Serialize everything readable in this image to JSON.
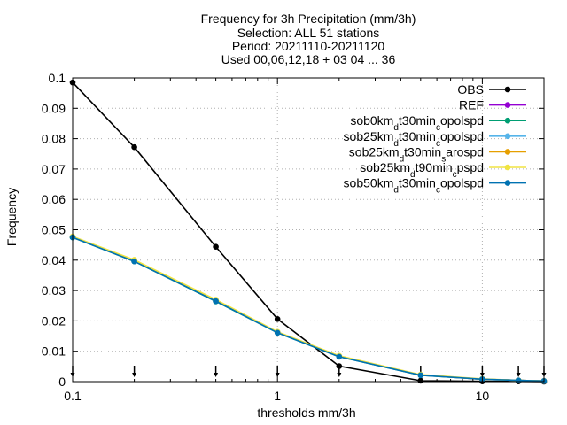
{
  "chart_data": {
    "type": "line",
    "title_lines": [
      "Frequency  for 3h Precipitation (mm/3h)",
      "Selection: ALL      51 stations",
      "Period: 20211110-20211120",
      "Used 00,06,12,18 + 03 04 ... 36"
    ],
    "xlabel": "thresholds mm/3h",
    "ylabel": "Frequency",
    "x_scale": "log",
    "xlim": [
      0.1,
      20
    ],
    "ylim": [
      0,
      0.1
    ],
    "x_ticks": [
      {
        "value": 0.1,
        "label": "0.1"
      },
      {
        "value": 1,
        "label": "1"
      },
      {
        "value": 10,
        "label": "10"
      }
    ],
    "y_ticks": [
      {
        "value": 0,
        "label": "0"
      },
      {
        "value": 0.01,
        "label": "0.01"
      },
      {
        "value": 0.02,
        "label": "0.02"
      },
      {
        "value": 0.03,
        "label": "0.03"
      },
      {
        "value": 0.04,
        "label": "0.04"
      },
      {
        "value": 0.05,
        "label": "0.05"
      },
      {
        "value": 0.06,
        "label": "0.06"
      },
      {
        "value": 0.07,
        "label": "0.07"
      },
      {
        "value": 0.08,
        "label": "0.08"
      },
      {
        "value": 0.09,
        "label": "0.09"
      },
      {
        "value": 0.1,
        "label": "0.1"
      }
    ],
    "grid": true,
    "legend_position": "top-right",
    "x": [
      0.1,
      0.2,
      0.5,
      1,
      2,
      5,
      10,
      15,
      20
    ],
    "series": [
      {
        "name": "OBS",
        "legend": [
          {
            "t": "OBS"
          }
        ],
        "color": "#000000",
        "values": [
          0.0985,
          0.0772,
          0.0444,
          0.0206,
          0.0051,
          0.0003,
          0.0001,
          0.0001,
          0.0
        ]
      },
      {
        "name": "REF",
        "legend": [
          {
            "t": "REF"
          }
        ],
        "color": "#9400d3",
        "values": [
          0.0476,
          0.0397,
          0.0265,
          0.0162,
          0.0083,
          0.0022,
          0.0008,
          0.0004,
          0.0002
        ]
      },
      {
        "name": "sob0km_dt30min_copolspd",
        "legend": [
          {
            "t": "sob0km"
          },
          {
            "t": "d",
            "sub": true
          },
          {
            "t": "t30min"
          },
          {
            "t": "c",
            "sub": true
          },
          {
            "t": "opolspd"
          }
        ],
        "color": "#009e73",
        "values": [
          0.0475,
          0.0396,
          0.0264,
          0.0161,
          0.0082,
          0.0021,
          0.0008,
          0.0004,
          0.0002
        ]
      },
      {
        "name": "sob25km_dt30min_copolspd",
        "legend": [
          {
            "t": "sob25km"
          },
          {
            "t": "d",
            "sub": true
          },
          {
            "t": "t30min"
          },
          {
            "t": "c",
            "sub": true
          },
          {
            "t": "opolspd"
          }
        ],
        "color": "#56b4e9",
        "values": [
          0.0476,
          0.0398,
          0.0266,
          0.0162,
          0.0083,
          0.0022,
          0.0008,
          0.0004,
          0.0002
        ]
      },
      {
        "name": "sob25km_dt30min_sarospd",
        "legend": [
          {
            "t": "sob25km"
          },
          {
            "t": "d",
            "sub": true
          },
          {
            "t": "t30min"
          },
          {
            "t": "s",
            "sub": true
          },
          {
            "t": "arospd"
          }
        ],
        "color": "#e69f00",
        "values": [
          0.0477,
          0.0399,
          0.0268,
          0.0163,
          0.0084,
          0.0022,
          0.0008,
          0.0004,
          0.0002
        ]
      },
      {
        "name": "sob25km_dt90min_cpspd",
        "legend": [
          {
            "t": "sob25km"
          },
          {
            "t": "d",
            "sub": true
          },
          {
            "t": "t90min"
          },
          {
            "t": "c",
            "sub": true
          },
          {
            "t": "pspd"
          }
        ],
        "color": "#f0e442",
        "values": [
          0.0478,
          0.0401,
          0.027,
          0.0164,
          0.0085,
          0.0023,
          0.0009,
          0.0004,
          0.0002
        ]
      },
      {
        "name": "sob50km_dt30min_copolspd",
        "legend": [
          {
            "t": "sob50km"
          },
          {
            "t": "d",
            "sub": true
          },
          {
            "t": "t30min"
          },
          {
            "t": "c",
            "sub": true
          },
          {
            "t": "opolspd"
          }
        ],
        "color": "#0072b2",
        "values": [
          0.0475,
          0.0396,
          0.0265,
          0.0161,
          0.0082,
          0.0021,
          0.0008,
          0.0004,
          0.0002
        ]
      }
    ],
    "threshold_markers": [
      0.1,
      0.2,
      0.5,
      1,
      2,
      5,
      10,
      15,
      20
    ]
  }
}
